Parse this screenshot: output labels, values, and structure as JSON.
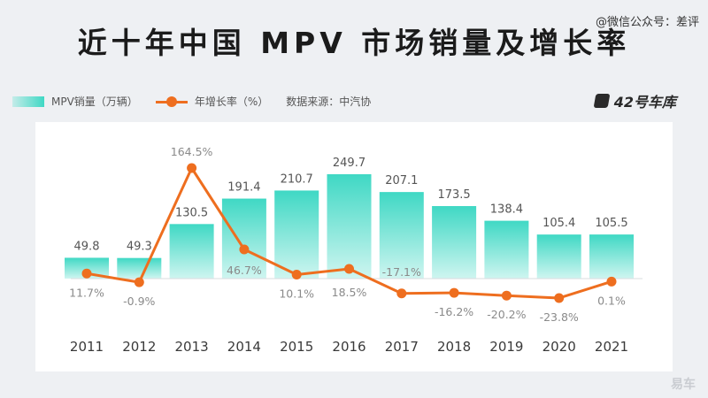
{
  "title": "近十年中国 MPV 市场销量及增长率",
  "watermark": "@微信公众号：差评",
  "brand": "42号车库",
  "legend": {
    "bar_label": "MPV销量（万辆）",
    "line_label": "年增长率（%）",
    "source": "数据来源：中汽协"
  },
  "colors": {
    "bar": "#3fd8c4",
    "line": "#ee6e1f",
    "label": "#555555",
    "pct": "#8a8a8a"
  },
  "chart_data": {
    "type": "bar",
    "categories": [
      "2011",
      "2012",
      "2013",
      "2014",
      "2015",
      "2016",
      "2017",
      "2018",
      "2019",
      "2020",
      "2021"
    ],
    "series": [
      {
        "name": "MPV销量（万辆）",
        "type": "bar",
        "values": [
          49.8,
          49.3,
          130.5,
          191.4,
          210.7,
          249.7,
          207.1,
          173.5,
          138.4,
          105.4,
          105.5
        ]
      },
      {
        "name": "年增长率（%）",
        "type": "line",
        "values": [
          11.7,
          -0.9,
          164.5,
          46.7,
          10.1,
          18.5,
          -17.1,
          -16.2,
          -20.2,
          -23.8,
          0.1
        ],
        "labels": [
          "11.7%",
          "-0.9%",
          "164.5%",
          "46.7%",
          "10.1%",
          "18.5%",
          "-17.1%",
          "-16.2%",
          "-20.2%",
          "-23.8%",
          "0.1%"
        ]
      }
    ],
    "grid": false,
    "legend_position": "top-left"
  },
  "corner_logo": "易车"
}
